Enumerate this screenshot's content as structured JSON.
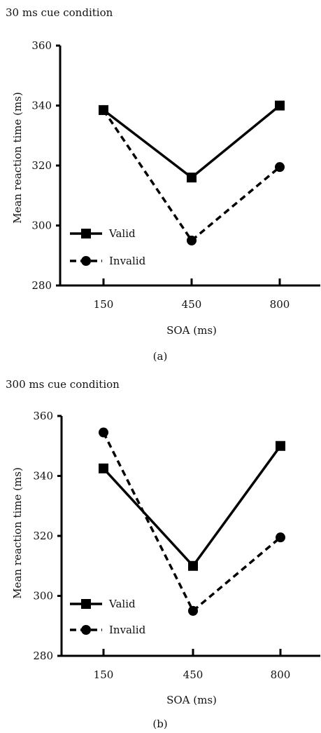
{
  "chart_data": [
    {
      "type": "line",
      "title": "30 ms cue condition",
      "xlabel": "SOA (ms)",
      "ylabel": "Mean reaction time (ms)",
      "caption": "(a)",
      "categories": [
        "150",
        "450",
        "800"
      ],
      "yticks": [
        "360",
        "340",
        "320",
        "300",
        "280"
      ],
      "ylim": [
        280,
        360
      ],
      "grid": false,
      "legend_position": "bottom-left",
      "series": [
        {
          "name": "Valid",
          "marker": "square",
          "line": "solid",
          "values": [
            338.5,
            316,
            340
          ]
        },
        {
          "name": "Invalid",
          "marker": "circle",
          "line": "dashed",
          "values": [
            338.5,
            295,
            319.5
          ]
        }
      ]
    },
    {
      "type": "line",
      "title": "300 ms cue condition",
      "xlabel": "SOA (ms)",
      "ylabel": "Mean reaction time (ms)",
      "caption": "(b)",
      "categories": [
        "150",
        "450",
        "800"
      ],
      "yticks": [
        "360",
        "340",
        "320",
        "300",
        "280"
      ],
      "ylim": [
        280,
        360
      ],
      "grid": false,
      "legend_position": "bottom-left",
      "series": [
        {
          "name": "Valid",
          "marker": "square",
          "line": "solid",
          "values": [
            342.5,
            310,
            350
          ]
        },
        {
          "name": "Invalid",
          "marker": "circle",
          "line": "dashed",
          "values": [
            354.5,
            295,
            319.5
          ]
        }
      ]
    }
  ]
}
